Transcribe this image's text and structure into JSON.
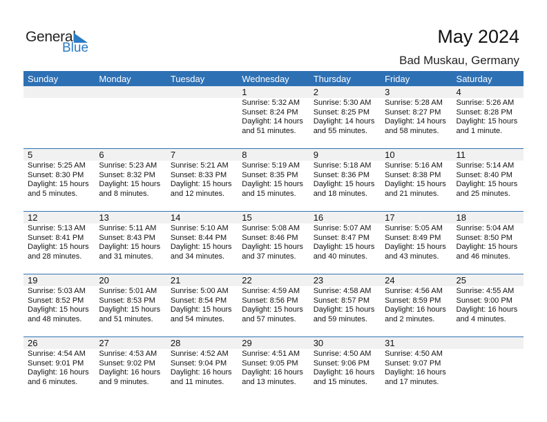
{
  "logo": {
    "line1": "General",
    "line2": "Blue"
  },
  "title": "May 2024",
  "location": "Bad Muskau, Germany",
  "weekdays": [
    "Sunday",
    "Monday",
    "Tuesday",
    "Wednesday",
    "Thursday",
    "Friday",
    "Saturday"
  ],
  "weeks": [
    [
      null,
      null,
      null,
      {
        "day": "1",
        "sunrise": "Sunrise: 5:32 AM",
        "sunset": "Sunset: 8:24 PM",
        "daylight1": "Daylight: 14 hours",
        "daylight2": "and 51 minutes."
      },
      {
        "day": "2",
        "sunrise": "Sunrise: 5:30 AM",
        "sunset": "Sunset: 8:25 PM",
        "daylight1": "Daylight: 14 hours",
        "daylight2": "and 55 minutes."
      },
      {
        "day": "3",
        "sunrise": "Sunrise: 5:28 AM",
        "sunset": "Sunset: 8:27 PM",
        "daylight1": "Daylight: 14 hours",
        "daylight2": "and 58 minutes."
      },
      {
        "day": "4",
        "sunrise": "Sunrise: 5:26 AM",
        "sunset": "Sunset: 8:28 PM",
        "daylight1": "Daylight: 15 hours",
        "daylight2": "and 1 minute."
      }
    ],
    [
      {
        "day": "5",
        "sunrise": "Sunrise: 5:25 AM",
        "sunset": "Sunset: 8:30 PM",
        "daylight1": "Daylight: 15 hours",
        "daylight2": "and 5 minutes."
      },
      {
        "day": "6",
        "sunrise": "Sunrise: 5:23 AM",
        "sunset": "Sunset: 8:32 PM",
        "daylight1": "Daylight: 15 hours",
        "daylight2": "and 8 minutes."
      },
      {
        "day": "7",
        "sunrise": "Sunrise: 5:21 AM",
        "sunset": "Sunset: 8:33 PM",
        "daylight1": "Daylight: 15 hours",
        "daylight2": "and 12 minutes."
      },
      {
        "day": "8",
        "sunrise": "Sunrise: 5:19 AM",
        "sunset": "Sunset: 8:35 PM",
        "daylight1": "Daylight: 15 hours",
        "daylight2": "and 15 minutes."
      },
      {
        "day": "9",
        "sunrise": "Sunrise: 5:18 AM",
        "sunset": "Sunset: 8:36 PM",
        "daylight1": "Daylight: 15 hours",
        "daylight2": "and 18 minutes."
      },
      {
        "day": "10",
        "sunrise": "Sunrise: 5:16 AM",
        "sunset": "Sunset: 8:38 PM",
        "daylight1": "Daylight: 15 hours",
        "daylight2": "and 21 minutes."
      },
      {
        "day": "11",
        "sunrise": "Sunrise: 5:14 AM",
        "sunset": "Sunset: 8:40 PM",
        "daylight1": "Daylight: 15 hours",
        "daylight2": "and 25 minutes."
      }
    ],
    [
      {
        "day": "12",
        "sunrise": "Sunrise: 5:13 AM",
        "sunset": "Sunset: 8:41 PM",
        "daylight1": "Daylight: 15 hours",
        "daylight2": "and 28 minutes."
      },
      {
        "day": "13",
        "sunrise": "Sunrise: 5:11 AM",
        "sunset": "Sunset: 8:43 PM",
        "daylight1": "Daylight: 15 hours",
        "daylight2": "and 31 minutes."
      },
      {
        "day": "14",
        "sunrise": "Sunrise: 5:10 AM",
        "sunset": "Sunset: 8:44 PM",
        "daylight1": "Daylight: 15 hours",
        "daylight2": "and 34 minutes."
      },
      {
        "day": "15",
        "sunrise": "Sunrise: 5:08 AM",
        "sunset": "Sunset: 8:46 PM",
        "daylight1": "Daylight: 15 hours",
        "daylight2": "and 37 minutes."
      },
      {
        "day": "16",
        "sunrise": "Sunrise: 5:07 AM",
        "sunset": "Sunset: 8:47 PM",
        "daylight1": "Daylight: 15 hours",
        "daylight2": "and 40 minutes."
      },
      {
        "day": "17",
        "sunrise": "Sunrise: 5:05 AM",
        "sunset": "Sunset: 8:49 PM",
        "daylight1": "Daylight: 15 hours",
        "daylight2": "and 43 minutes."
      },
      {
        "day": "18",
        "sunrise": "Sunrise: 5:04 AM",
        "sunset": "Sunset: 8:50 PM",
        "daylight1": "Daylight: 15 hours",
        "daylight2": "and 46 minutes."
      }
    ],
    [
      {
        "day": "19",
        "sunrise": "Sunrise: 5:03 AM",
        "sunset": "Sunset: 8:52 PM",
        "daylight1": "Daylight: 15 hours",
        "daylight2": "and 48 minutes."
      },
      {
        "day": "20",
        "sunrise": "Sunrise: 5:01 AM",
        "sunset": "Sunset: 8:53 PM",
        "daylight1": "Daylight: 15 hours",
        "daylight2": "and 51 minutes."
      },
      {
        "day": "21",
        "sunrise": "Sunrise: 5:00 AM",
        "sunset": "Sunset: 8:54 PM",
        "daylight1": "Daylight: 15 hours",
        "daylight2": "and 54 minutes."
      },
      {
        "day": "22",
        "sunrise": "Sunrise: 4:59 AM",
        "sunset": "Sunset: 8:56 PM",
        "daylight1": "Daylight: 15 hours",
        "daylight2": "and 57 minutes."
      },
      {
        "day": "23",
        "sunrise": "Sunrise: 4:58 AM",
        "sunset": "Sunset: 8:57 PM",
        "daylight1": "Daylight: 15 hours",
        "daylight2": "and 59 minutes."
      },
      {
        "day": "24",
        "sunrise": "Sunrise: 4:56 AM",
        "sunset": "Sunset: 8:59 PM",
        "daylight1": "Daylight: 16 hours",
        "daylight2": "and 2 minutes."
      },
      {
        "day": "25",
        "sunrise": "Sunrise: 4:55 AM",
        "sunset": "Sunset: 9:00 PM",
        "daylight1": "Daylight: 16 hours",
        "daylight2": "and 4 minutes."
      }
    ],
    [
      {
        "day": "26",
        "sunrise": "Sunrise: 4:54 AM",
        "sunset": "Sunset: 9:01 PM",
        "daylight1": "Daylight: 16 hours",
        "daylight2": "and 6 minutes."
      },
      {
        "day": "27",
        "sunrise": "Sunrise: 4:53 AM",
        "sunset": "Sunset: 9:02 PM",
        "daylight1": "Daylight: 16 hours",
        "daylight2": "and 9 minutes."
      },
      {
        "day": "28",
        "sunrise": "Sunrise: 4:52 AM",
        "sunset": "Sunset: 9:04 PM",
        "daylight1": "Daylight: 16 hours",
        "daylight2": "and 11 minutes."
      },
      {
        "day": "29",
        "sunrise": "Sunrise: 4:51 AM",
        "sunset": "Sunset: 9:05 PM",
        "daylight1": "Daylight: 16 hours",
        "daylight2": "and 13 minutes."
      },
      {
        "day": "30",
        "sunrise": "Sunrise: 4:50 AM",
        "sunset": "Sunset: 9:06 PM",
        "daylight1": "Daylight: 16 hours",
        "daylight2": "and 15 minutes."
      },
      {
        "day": "31",
        "sunrise": "Sunrise: 4:50 AM",
        "sunset": "Sunset: 9:07 PM",
        "daylight1": "Daylight: 16 hours",
        "daylight2": "and 17 minutes."
      },
      null
    ]
  ],
  "colors": {
    "header": "#2e70b4",
    "brand": "#2a7bc4",
    "date_band": "#f1f1f1"
  }
}
